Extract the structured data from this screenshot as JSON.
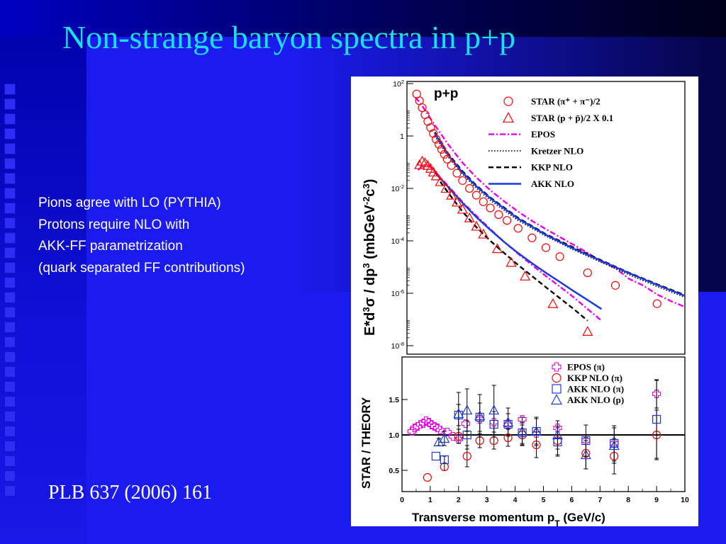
{
  "slide": {
    "title": "Non-strange baryon spectra in p+p",
    "notes": [
      "Pions agree with LO (PYTHIA)",
      "Protons require NLO with",
      "AKK-FF parametrization",
      "(quark separated FF contributions)"
    ],
    "citation": "PLB 637 (2006) 161",
    "colors": {
      "background": "#1b1bf0",
      "title": "#18e0f0",
      "text": "#ffffff"
    }
  },
  "chart_data": [
    {
      "type": "scatter",
      "panel_label": "p+p",
      "xlim": [
        0,
        10
      ],
      "y_scale": "log",
      "ylim": [
        1e-08,
        100
      ],
      "ylabel": {
        "main": "E*d",
        "exp3": "3",
        "sigma": "σ",
        "mid": " / dp",
        "exp3b": "3",
        "units": "  (mbGeV",
        "uexp": "-2",
        "units2": "c",
        "uexp2": "3",
        "close": ")"
      },
      "y_ticks": [
        {
          "value": 100,
          "label": "10",
          "exp": "2"
        },
        {
          "value": 1,
          "label": "1",
          "exp": ""
        },
        {
          "value": 0.01,
          "label": "10",
          "exp": "-2"
        },
        {
          "value": 0.0001,
          "label": "10",
          "exp": "-4"
        },
        {
          "value": 1e-06,
          "label": "10",
          "exp": "-6"
        },
        {
          "value": 1e-08,
          "label": "10",
          "exp": "-8"
        }
      ],
      "legend": {
        "placement": "top-right",
        "entries": [
          {
            "marker": "circle",
            "color": "#ff0000",
            "text": "STAR (π⁺ + π⁻)/2"
          },
          {
            "marker": "triangle",
            "color": "#ff0000",
            "text": "STAR (p + p̄)/2 X 0.1"
          },
          {
            "line": "dashdot",
            "color": "#ee00ee",
            "text": "EPOS"
          },
          {
            "line": "dotted",
            "color": "#000000",
            "text": "Kretzer NLO"
          },
          {
            "line": "dashed",
            "color": "#000000",
            "text": "KKP NLO"
          },
          {
            "line": "solid",
            "color": "#1a3adf",
            "text": "AKK  NLO"
          }
        ]
      },
      "series": [
        {
          "name": "STAR (π⁺ + π⁻)/2",
          "marker": "circle",
          "color": "#ff0000",
          "x": [
            0.35,
            0.45,
            0.55,
            0.65,
            0.75,
            0.85,
            0.95,
            1.05,
            1.15,
            1.25,
            1.35,
            1.45,
            1.6,
            1.8,
            2.0,
            2.25,
            2.5,
            2.75,
            3.0,
            3.3,
            3.6,
            4.0,
            4.5,
            5.0,
            5.5,
            6.5,
            7.5,
            9.0
          ],
          "y": [
            40,
            22,
            12,
            6.5,
            3.6,
            2.1,
            1.25,
            0.75,
            0.48,
            0.31,
            0.2,
            0.13,
            0.075,
            0.038,
            0.02,
            0.01,
            0.0055,
            0.0031,
            0.0018,
            0.001,
            0.0006,
            0.0003,
            0.00013,
            5.5e-05,
            2.5e-05,
            6e-06,
            2e-06,
            4e-07
          ]
        },
        {
          "name": "STAR (p + p̄)/2 X 0.1",
          "marker": "triangle",
          "color": "#ff0000",
          "x": [
            0.45,
            0.55,
            0.65,
            0.75,
            0.85,
            0.95,
            1.05,
            1.2,
            1.4,
            1.6,
            1.8,
            2.0,
            2.25,
            2.5,
            2.75,
            3.25,
            3.75,
            4.25,
            5.25,
            6.5
          ],
          "y": [
            0.08,
            0.11,
            0.095,
            0.075,
            0.058,
            0.042,
            0.03,
            0.018,
            0.01,
            0.0055,
            0.003,
            0.0016,
            0.00075,
            0.00036,
            0.00018,
            5e-05,
            1.5e-05,
            4.5e-06,
            4e-07,
            3.5e-08
          ]
        }
      ],
      "curves": [
        {
          "name": "EPOS (π)",
          "style": "dashdot",
          "color": "#ee00ee",
          "x": [
            0.3,
            0.5,
            0.8,
            1.0,
            1.5,
            2.0,
            2.5,
            3.0,
            3.5,
            4.0,
            4.5,
            5.0,
            5.5,
            6.0,
            6.5,
            7.0,
            7.5,
            8.0,
            8.5,
            9.0,
            9.5,
            10.0
          ],
          "y": [
            30,
            17,
            5.5,
            2.6,
            0.45,
            0.095,
            0.026,
            0.0085,
            0.0032,
            0.0013,
            0.00058,
            0.00028,
            0.00014,
            7e-05,
            3.5e-05,
            1.6e-05,
            9e-06,
            3.5e-06,
            2e-06,
            9e-07,
            5e-07,
            3e-07
          ]
        },
        {
          "name": "Kretzer NLO (π)",
          "style": "dotted",
          "color": "#000000",
          "x": [
            1.0,
            1.5,
            2.0,
            2.5,
            3.0,
            4.0,
            5.0,
            6.0,
            7.0,
            8.0,
            9.0,
            10.0
          ],
          "y": [
            1.0,
            0.15,
            0.035,
            0.01,
            0.0035,
            0.0006,
            0.00015,
            4.5e-05,
            1.5e-05,
            5e-06,
            1.8e-06,
            7e-07
          ]
        },
        {
          "name": "KKP NLO (π)",
          "style": "dashed",
          "color": "#000000",
          "x": [
            1.0,
            1.5,
            2.0,
            2.5,
            3.0,
            4.0,
            5.0,
            6.0,
            7.0,
            8.0,
            9.0,
            10.0
          ],
          "y": [
            1.4,
            0.2,
            0.045,
            0.013,
            0.0045,
            0.00075,
            0.00018,
            5.5e-05,
            1.8e-05,
            6e-06,
            2.2e-06,
            8.5e-07
          ]
        },
        {
          "name": "AKK NLO (π)",
          "style": "solid",
          "color": "#1a3adf",
          "x": [
            1.0,
            1.5,
            2.0,
            2.5,
            3.0,
            4.0,
            5.0,
            6.0,
            7.0,
            8.0,
            9.0,
            10.0
          ],
          "y": [
            1.25,
            0.18,
            0.04,
            0.012,
            0.0042,
            0.0007,
            0.00017,
            5e-05,
            1.7e-05,
            5.8e-06,
            2.1e-06,
            8e-07
          ]
        },
        {
          "name": "EPOS (p)",
          "style": "dashdot",
          "color": "#ee00ee",
          "x": [
            0.4,
            0.6,
            0.8,
            1.0,
            1.5,
            2.0,
            2.5,
            3.0,
            3.5,
            4.0,
            4.5,
            5.0,
            5.5,
            6.0,
            6.5,
            7.0
          ],
          "y": [
            0.05,
            0.08,
            0.07,
            0.045,
            0.012,
            0.003,
            0.0009,
            0.00028,
            9e-05,
            3.2e-05,
            1.2e-05,
            4.5e-06,
            1.8e-06,
            7e-07,
            2.5e-07,
            9e-08
          ]
        },
        {
          "name": "KKP NLO (p)",
          "style": "dashed",
          "color": "#000000",
          "x": [
            1.2,
            1.5,
            2.0,
            2.5,
            3.0,
            3.5,
            4.0,
            4.5,
            5.0,
            5.5,
            6.0,
            6.5
          ],
          "y": [
            0.018,
            0.0065,
            0.0013,
            0.00033,
            0.0001,
            3.4e-05,
            1.2e-05,
            4.5e-06,
            1.7e-06,
            6.5e-07,
            2.5e-07,
            9e-08
          ]
        },
        {
          "name": "AKK NLO (p)",
          "style": "solid",
          "color": "#1a3adf",
          "x": [
            1.0,
            1.5,
            2.0,
            2.5,
            3.0,
            3.5,
            4.0,
            4.5,
            5.0,
            5.5,
            6.0,
            6.5,
            7.0
          ],
          "y": [
            0.04,
            0.011,
            0.0028,
            0.0008,
            0.00026,
            9e-05,
            3.4e-05,
            1.4e-05,
            6e-06,
            2.7e-06,
            1.2e-06,
            5.5e-07,
            2.5e-07
          ]
        }
      ]
    },
    {
      "type": "scatter",
      "xlim": [
        0,
        10
      ],
      "ylim": [
        0.2,
        2.1
      ],
      "xlabel": {
        "main": "Transverse momentum p",
        "sub": "T",
        "unit": " (GeV/c)"
      },
      "ylabel": "STAR / THEORY",
      "x_ticks": [
        "0",
        "1",
        "2",
        "3",
        "4",
        "5",
        "6",
        "7",
        "8",
        "9",
        "10"
      ],
      "y_ticks": [
        "0.5",
        "1.0",
        "1.5"
      ],
      "reference_line": 1.0,
      "legend": {
        "placement": "top-right",
        "entries": [
          {
            "marker": "cross",
            "color": "#ee00ee",
            "text": "EPOS (π)"
          },
          {
            "marker": "circle",
            "color": "#ff0000",
            "text": "KKP NLO (π)"
          },
          {
            "marker": "square",
            "color": "#1a3adf",
            "text": "AKK NLO (π)"
          },
          {
            "marker": "triangle",
            "color": "#1a3adf",
            "text": "AKK NLO (p)"
          }
        ]
      },
      "series": [
        {
          "name": "EPOS (π)",
          "marker": "cross",
          "color": "#ee00ee",
          "x": [
            0.35,
            0.45,
            0.55,
            0.65,
            0.75,
            0.85,
            0.95,
            1.05,
            1.15,
            1.25,
            1.35,
            1.6,
            1.8,
            2.0,
            2.25,
            2.75,
            3.25,
            3.75,
            4.25,
            4.75,
            5.5,
            6.5,
            7.5,
            9.0
          ],
          "y": [
            1.05,
            1.1,
            1.12,
            1.15,
            1.16,
            1.2,
            1.18,
            1.14,
            1.12,
            1.1,
            1.07,
            1.04,
            0.98,
            0.94,
            1.16,
            1.22,
            1.18,
            1.14,
            1.22,
            1.02,
            1.1,
            0.92,
            0.88,
            1.58
          ],
          "err": [
            0,
            0,
            0,
            0,
            0,
            0,
            0,
            0,
            0,
            0,
            0,
            0,
            0,
            0,
            0,
            0,
            0,
            0,
            0,
            0,
            0,
            0,
            0,
            0.2
          ]
        },
        {
          "name": "KKP NLO (π)",
          "marker": "circle",
          "color": "#ff0000",
          "x": [
            0.9,
            1.5,
            2.0,
            2.3,
            2.75,
            3.25,
            3.75,
            4.25,
            4.75,
            5.5,
            6.5,
            7.5,
            9.0
          ],
          "y": [
            0.4,
            0.55,
            0.98,
            0.7,
            0.92,
            0.92,
            0.96,
            1.0,
            0.86,
            0.92,
            0.74,
            0.7,
            1.0
          ],
          "err": [
            0,
            0.05,
            0.1,
            0.15,
            0.1,
            0.12,
            0.12,
            0.14,
            0.18,
            0.2,
            0.22,
            0.25,
            0.35
          ]
        },
        {
          "name": "AKK NLO (π)",
          "marker": "square",
          "color": "#1a3adf",
          "x": [
            1.2,
            1.5,
            2.0,
            2.3,
            2.75,
            3.25,
            3.75,
            4.25,
            4.75,
            5.5,
            6.5,
            7.5,
            9.0
          ],
          "y": [
            0.7,
            0.65,
            1.28,
            1.0,
            1.25,
            1.15,
            1.15,
            1.03,
            1.05,
            0.9,
            0.92,
            0.88,
            1.22
          ],
          "err": [
            0,
            0.05,
            0.15,
            0.2,
            0.2,
            0.18,
            0.15,
            0.15,
            0.18,
            0.2,
            0.22,
            0.25,
            0.55
          ]
        },
        {
          "name": "AKK NLO (p)",
          "marker": "triangle",
          "color": "#1a3adf",
          "x": [
            1.3,
            1.5,
            2.0,
            2.3,
            2.75,
            3.25,
            3.75,
            4.25,
            4.75,
            5.5,
            6.5,
            7.5
          ],
          "y": [
            0.9,
            0.95,
            1.3,
            1.35,
            1.27,
            1.35,
            1.18,
            1.05,
            1.05,
            1.0,
            0.72,
            0.85
          ],
          "err": [
            0.05,
            0.1,
            0.3,
            0.3,
            0.3,
            0.35,
            0.2,
            0.2,
            0.2,
            0.2,
            0.2,
            0.25
          ]
        }
      ]
    }
  ]
}
